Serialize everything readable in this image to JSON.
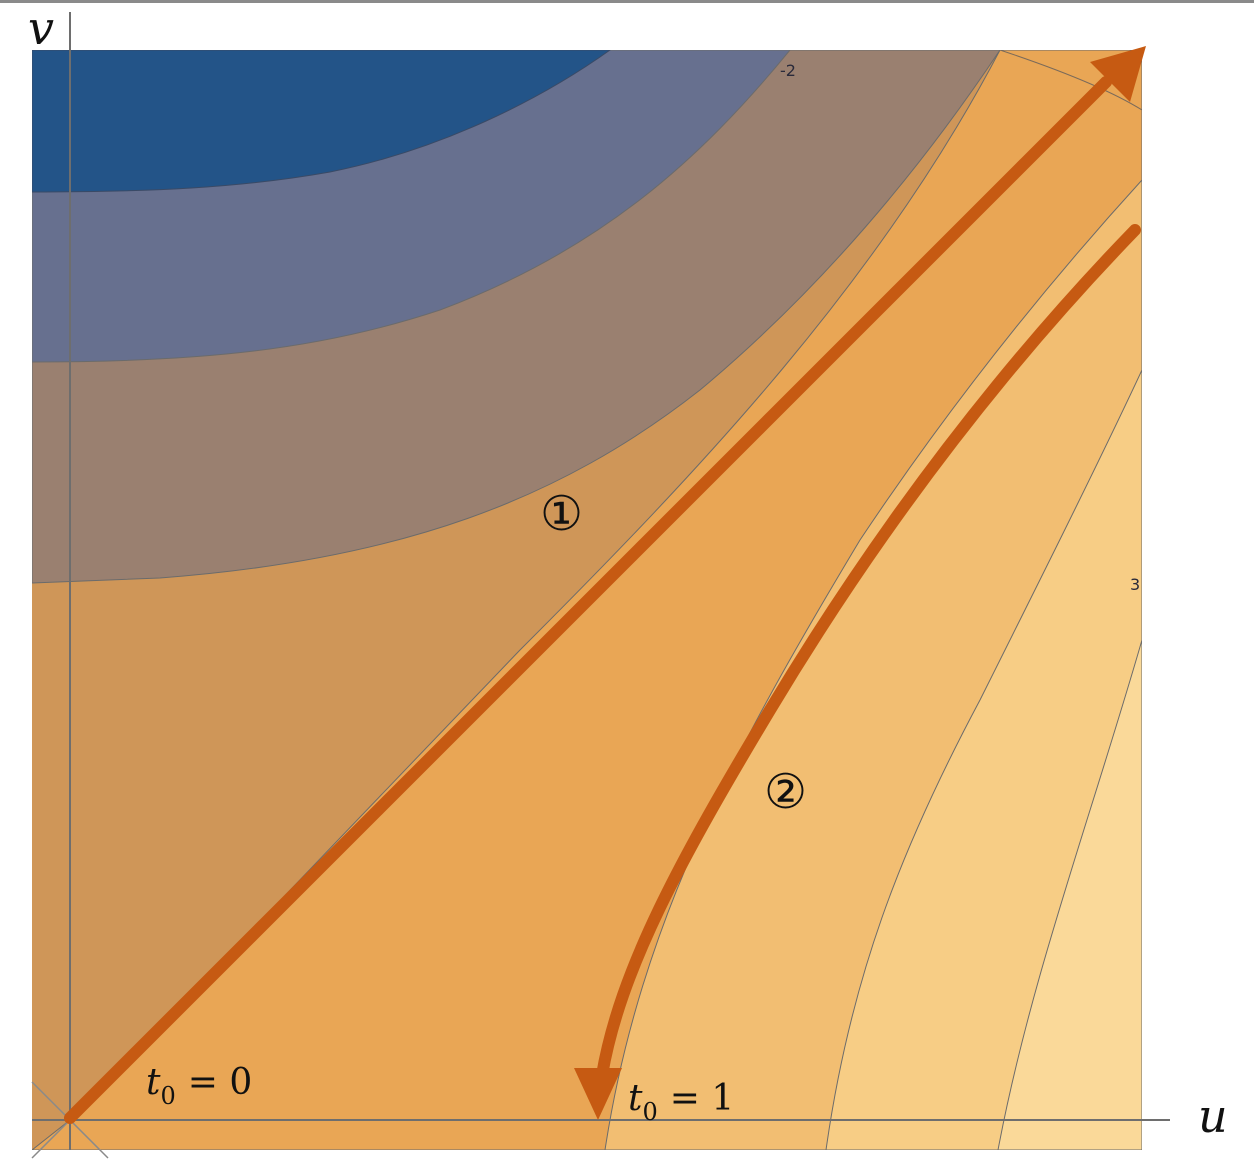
{
  "axes": {
    "x_label": "u",
    "y_label": "v"
  },
  "contours": {
    "labels": [
      "-2",
      "3"
    ]
  },
  "paths": [
    {
      "id": "1",
      "label": "①",
      "start": "t",
      "start_sub": "0",
      "start_eq": "= 0"
    },
    {
      "id": "2",
      "label": "②",
      "start": "t",
      "start_sub": "0",
      "start_eq": "= 1"
    }
  ],
  "colors": {
    "arrow": "#c65a12",
    "axis": "#6e6e6e",
    "band_dark_blue": "#235488",
    "band_slate": "#67708f",
    "band_mauve": "#9a8070",
    "band_tan": "#cf9658",
    "band_orange": "#e9a655",
    "band_light_orange": "#f2be72",
    "band_pale_orange": "#f7cd85",
    "band_peach": "#fad999",
    "band_cream": "#fde5a8"
  }
}
